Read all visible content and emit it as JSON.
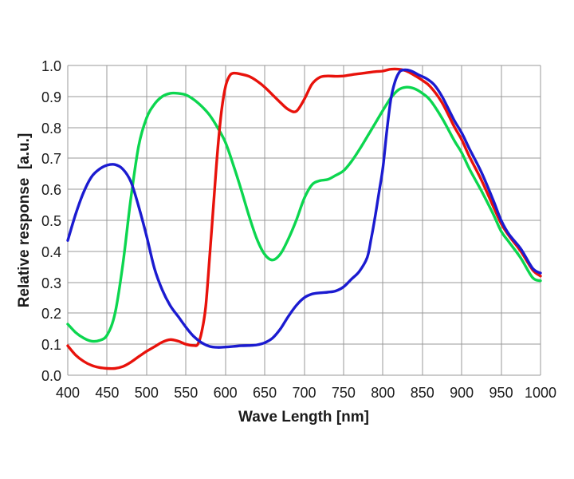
{
  "colors": {
    "red_series": "#e8120b",
    "green_series": "#0cd64f",
    "blue_series": "#1b1bd0",
    "grid": "#999999",
    "text": "#1b1b1b",
    "background": "#ffffff"
  },
  "chart_data": {
    "type": "line",
    "title": "",
    "xlabel": "Wave Length [nm]",
    "ylabel": "Relative response  [a.u.]",
    "xlim": [
      400,
      1000
    ],
    "ylim": [
      0.0,
      1.0
    ],
    "x_ticks": [
      400,
      450,
      500,
      550,
      600,
      650,
      700,
      750,
      800,
      850,
      900,
      950,
      1000
    ],
    "y_ticks": [
      0.0,
      0.1,
      0.2,
      0.3,
      0.4,
      0.5,
      0.6,
      0.7,
      0.8,
      0.9,
      1.0
    ],
    "grid": true,
    "legend": false,
    "series": [
      {
        "name": "green",
        "color": "#0cd64f",
        "x": [
          400,
          410,
          420,
          430,
          440,
          450,
          460,
          470,
          480,
          490,
          500,
          510,
          520,
          530,
          540,
          550,
          560,
          570,
          580,
          590,
          600,
          610,
          620,
          630,
          640,
          650,
          660,
          670,
          680,
          690,
          700,
          710,
          720,
          730,
          740,
          750,
          760,
          770,
          780,
          790,
          800,
          810,
          820,
          830,
          840,
          850,
          860,
          875,
          890,
          900,
          910,
          925,
          940,
          950,
          960,
          975,
          990,
          1000
        ],
        "y": [
          0.165,
          0.138,
          0.12,
          0.11,
          0.112,
          0.13,
          0.2,
          0.36,
          0.57,
          0.74,
          0.83,
          0.875,
          0.9,
          0.91,
          0.91,
          0.905,
          0.89,
          0.868,
          0.84,
          0.8,
          0.752,
          0.68,
          0.6,
          0.515,
          0.44,
          0.39,
          0.372,
          0.392,
          0.44,
          0.5,
          0.57,
          0.615,
          0.628,
          0.632,
          0.645,
          0.66,
          0.69,
          0.728,
          0.77,
          0.812,
          0.855,
          0.895,
          0.922,
          0.93,
          0.925,
          0.91,
          0.888,
          0.83,
          0.76,
          0.718,
          0.665,
          0.595,
          0.52,
          0.465,
          0.43,
          0.378,
          0.315,
          0.305
        ]
      },
      {
        "name": "red",
        "color": "#e8120b",
        "x": [
          400,
          410,
          420,
          430,
          440,
          450,
          460,
          470,
          480,
          490,
          500,
          510,
          520,
          530,
          540,
          550,
          560,
          565,
          570,
          575,
          580,
          585,
          590,
          595,
          600,
          605,
          610,
          620,
          630,
          640,
          650,
          660,
          670,
          680,
          690,
          700,
          710,
          720,
          730,
          740,
          750,
          765,
          775,
          790,
          800,
          810,
          820,
          830,
          840,
          850,
          860,
          875,
          890,
          900,
          910,
          925,
          940,
          950,
          960,
          975,
          990,
          1000
        ],
        "y": [
          0.095,
          0.065,
          0.045,
          0.032,
          0.025,
          0.022,
          0.022,
          0.028,
          0.042,
          0.06,
          0.077,
          0.092,
          0.107,
          0.115,
          0.11,
          0.1,
          0.096,
          0.1,
          0.14,
          0.22,
          0.38,
          0.55,
          0.72,
          0.85,
          0.93,
          0.965,
          0.975,
          0.972,
          0.965,
          0.95,
          0.93,
          0.905,
          0.88,
          0.858,
          0.852,
          0.89,
          0.94,
          0.962,
          0.966,
          0.965,
          0.966,
          0.972,
          0.975,
          0.98,
          0.982,
          0.988,
          0.988,
          0.982,
          0.968,
          0.952,
          0.932,
          0.88,
          0.805,
          0.76,
          0.705,
          0.63,
          0.545,
          0.49,
          0.45,
          0.4,
          0.34,
          0.32
        ]
      },
      {
        "name": "blue",
        "color": "#1b1bd0",
        "x": [
          400,
          410,
          420,
          430,
          440,
          450,
          460,
          470,
          480,
          490,
          500,
          510,
          520,
          530,
          540,
          550,
          560,
          570,
          580,
          590,
          600,
          610,
          620,
          630,
          640,
          650,
          660,
          670,
          680,
          690,
          700,
          710,
          720,
          730,
          740,
          750,
          760,
          770,
          780,
          785,
          790,
          795,
          800,
          805,
          810,
          815,
          820,
          825,
          835,
          845,
          855,
          865,
          875,
          890,
          900,
          910,
          925,
          940,
          950,
          960,
          975,
          990,
          1000
        ],
        "y": [
          0.435,
          0.52,
          0.59,
          0.64,
          0.665,
          0.678,
          0.68,
          0.665,
          0.625,
          0.545,
          0.45,
          0.345,
          0.275,
          0.225,
          0.19,
          0.155,
          0.125,
          0.105,
          0.093,
          0.09,
          0.091,
          0.093,
          0.095,
          0.096,
          0.098,
          0.105,
          0.12,
          0.15,
          0.19,
          0.225,
          0.25,
          0.262,
          0.266,
          0.268,
          0.272,
          0.285,
          0.31,
          0.335,
          0.38,
          0.44,
          0.51,
          0.59,
          0.67,
          0.79,
          0.89,
          0.945,
          0.975,
          0.985,
          0.983,
          0.97,
          0.958,
          0.938,
          0.9,
          0.825,
          0.782,
          0.73,
          0.655,
          0.565,
          0.5,
          0.455,
          0.408,
          0.345,
          0.33
        ]
      }
    ]
  }
}
